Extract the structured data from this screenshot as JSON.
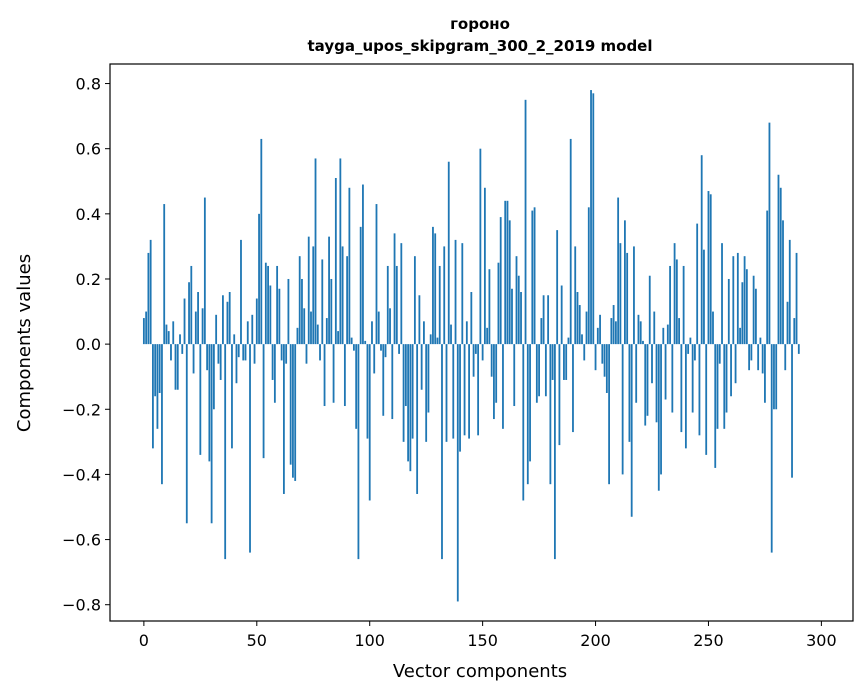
{
  "chart_data": {
    "type": "bar",
    "title": "гороно",
    "subtitle": "tayga_upos_skipgram_300_2_2019 model",
    "xlabel": "Vector components",
    "ylabel": "Components values",
    "xlim": [
      -15,
      314
    ],
    "ylim": [
      -0.85,
      0.86
    ],
    "xticks": [
      0,
      50,
      100,
      150,
      200,
      250,
      300
    ],
    "yticks": [
      -0.8,
      -0.6,
      -0.4,
      -0.2,
      0.0,
      0.2,
      0.4,
      0.6,
      0.8
    ],
    "xtick_labels": [
      "0",
      "50",
      "100",
      "150",
      "200",
      "250",
      "300"
    ],
    "ytick_labels": [
      "−0.8",
      "−0.6",
      "−0.4",
      "−0.2",
      "0.0",
      "0.2",
      "0.4",
      "0.6",
      "0.8"
    ],
    "grid": false,
    "bar_color": "#1f77b4",
    "series": [
      {
        "values": [
          0.08,
          0.1,
          0.28,
          0.32,
          -0.32,
          -0.16,
          -0.26,
          -0.15,
          -0.43,
          0.43,
          0.06,
          0.04,
          -0.05,
          0.07,
          -0.14,
          -0.14,
          0.03,
          -0.03,
          0.14,
          -0.55,
          0.19,
          0.24,
          -0.09,
          0.1,
          0.16,
          -0.34,
          0.11,
          0.45,
          -0.08,
          -0.36,
          -0.55,
          -0.2,
          0.09,
          -0.06,
          -0.11,
          0.15,
          -0.66,
          0.13,
          0.16,
          -0.32,
          0.03,
          -0.12,
          -0.04,
          0.32,
          -0.05,
          -0.05,
          0.07,
          -0.64,
          0.09,
          -0.06,
          0.14,
          0.4,
          0.63,
          -0.35,
          0.25,
          0.24,
          0.18,
          -0.11,
          -0.18,
          0.24,
          0.17,
          -0.05,
          -0.46,
          -0.06,
          0.2,
          -0.37,
          -0.41,
          -0.42,
          0.05,
          0.27,
          0.2,
          0.11,
          -0.06,
          0.33,
          0.1,
          0.3,
          0.57,
          0.06,
          -0.05,
          0.26,
          -0.19,
          0.08,
          0.33,
          0.2,
          -0.18,
          0.51,
          0.04,
          0.57,
          0.3,
          -0.19,
          0.27,
          0.48,
          0.02,
          -0.02,
          -0.26,
          -0.66,
          0.36,
          0.49,
          0.01,
          -0.29,
          -0.48,
          0.07,
          -0.09,
          0.43,
          0.1,
          -0.02,
          -0.22,
          -0.04,
          0.24,
          0.11,
          -0.23,
          0.34,
          0.24,
          -0.03,
          0.31,
          -0.3,
          -0.19,
          -0.36,
          -0.39,
          -0.29,
          0.27,
          -0.46,
          0.15,
          -0.14,
          0.07,
          -0.3,
          -0.21,
          0.03,
          0.36,
          0.34,
          0.02,
          0.24,
          -0.66,
          0.3,
          -0.3,
          0.56,
          0.06,
          -0.29,
          0.32,
          -0.79,
          -0.33,
          0.31,
          -0.28,
          0.07,
          -0.29,
          0.16,
          -0.1,
          -0.03,
          -0.28,
          0.6,
          -0.05,
          0.48,
          0.05,
          0.23,
          -0.1,
          -0.23,
          -0.18,
          0.25,
          0.39,
          -0.26,
          0.44,
          0.44,
          0.38,
          0.17,
          -0.19,
          0.27,
          0.21,
          0.16,
          -0.48,
          0.75,
          -0.43,
          -0.36,
          0.41,
          0.42,
          -0.18,
          -0.16,
          0.08,
          0.15,
          -0.16,
          0.15,
          -0.43,
          -0.11,
          -0.66,
          0.35,
          -0.31,
          0.18,
          -0.11,
          -0.11,
          0.02,
          0.63,
          -0.27,
          0.3,
          0.16,
          0.12,
          0.03,
          -0.05,
          0.1,
          0.42,
          0.78,
          0.77,
          -0.08,
          0.05,
          0.09,
          -0.06,
          -0.1,
          -0.15,
          -0.43,
          0.08,
          0.12,
          0.07,
          0.45,
          0.31,
          -0.4,
          0.38,
          0.28,
          -0.3,
          -0.53,
          0.3,
          -0.18,
          0.09,
          0.07,
          0.01,
          -0.25,
          -0.22,
          0.21,
          -0.12,
          0.1,
          -0.24,
          -0.45,
          -0.4,
          0.05,
          -0.17,
          0.06,
          0.24,
          -0.21,
          0.31,
          0.26,
          0.08,
          -0.27,
          0.24,
          -0.32,
          -0.03,
          0.02,
          -0.21,
          -0.05,
          0.37,
          -0.28,
          0.58,
          0.29,
          -0.34,
          0.47,
          0.46,
          0.1,
          -0.38,
          -0.26,
          -0.06,
          0.31,
          -0.26,
          -0.21,
          0.2,
          -0.16,
          0.27,
          -0.12,
          0.28,
          0.05,
          0.19,
          0.27,
          0.23,
          -0.08,
          -0.05,
          0.21,
          0.17,
          -0.08,
          0.02,
          -0.09,
          -0.18,
          0.41,
          0.68,
          -0.64,
          -0.2,
          -0.2,
          0.52,
          0.48,
          0.38,
          -0.08,
          0.13,
          0.32,
          -0.41,
          0.08,
          0.28,
          -0.03
        ]
      }
    ]
  }
}
